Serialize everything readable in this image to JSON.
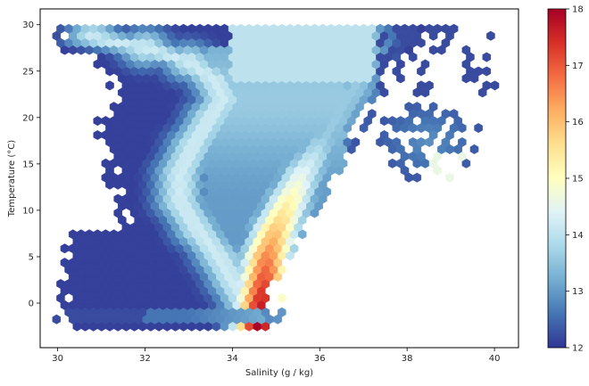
{
  "chart_data": {
    "type": "hexbin",
    "title": "",
    "xlabel": "Salinity (g / kg)",
    "ylabel": "Temperature ($^\\circ$C)",
    "ylabel_display": "Temperature (°C)",
    "xlim": [
      29.6,
      40.55
    ],
    "ylim": [
      -4.8,
      31.7
    ],
    "xticks": [
      30,
      32,
      34,
      36,
      38,
      40
    ],
    "yticks": [
      0,
      5,
      10,
      15,
      20,
      25,
      30
    ],
    "grid": false,
    "colorbar": {
      "label": "",
      "min": 12,
      "max": 18,
      "ticks": [
        12,
        13,
        14,
        15,
        16,
        17,
        18
      ],
      "colormap": "RdYlBu_r",
      "colors": [
        "#313695",
        "#4575b4",
        "#74add1",
        "#abd9e9",
        "#e0f3f8",
        "#ffffbf",
        "#fee090",
        "#fdae61",
        "#f46d43",
        "#d73027",
        "#a50026"
      ]
    },
    "cloud": {
      "description_fields": "salinity/temperature centers of the data density structure",
      "spine_hot": [
        [
          34.6,
          -2.3
        ],
        [
          34.7,
          1.5
        ],
        [
          34.8,
          5
        ],
        [
          35.0,
          8
        ],
        [
          35.3,
          11
        ],
        [
          35.6,
          14
        ],
        [
          36.0,
          17
        ],
        [
          36.4,
          20
        ],
        [
          36.8,
          23
        ],
        [
          37.0,
          26
        ],
        [
          37.1,
          28.5
        ]
      ],
      "warm_fresh_branch": [
        [
          30.8,
          28.6
        ],
        [
          32.0,
          27.5
        ],
        [
          33.0,
          26.0
        ],
        [
          33.6,
          24
        ],
        [
          33.8,
          22
        ],
        [
          33.5,
          20
        ],
        [
          33.1,
          17
        ],
        [
          32.8,
          14
        ],
        [
          32.8,
          11
        ],
        [
          33.2,
          8
        ],
        [
          33.7,
          5
        ],
        [
          34.0,
          2.5
        ],
        [
          34.3,
          0
        ]
      ],
      "bottom_band_y": [
        -1.8,
        -0.8
      ],
      "saline_patch_center": [
        38.4,
        18.0
      ]
    }
  }
}
